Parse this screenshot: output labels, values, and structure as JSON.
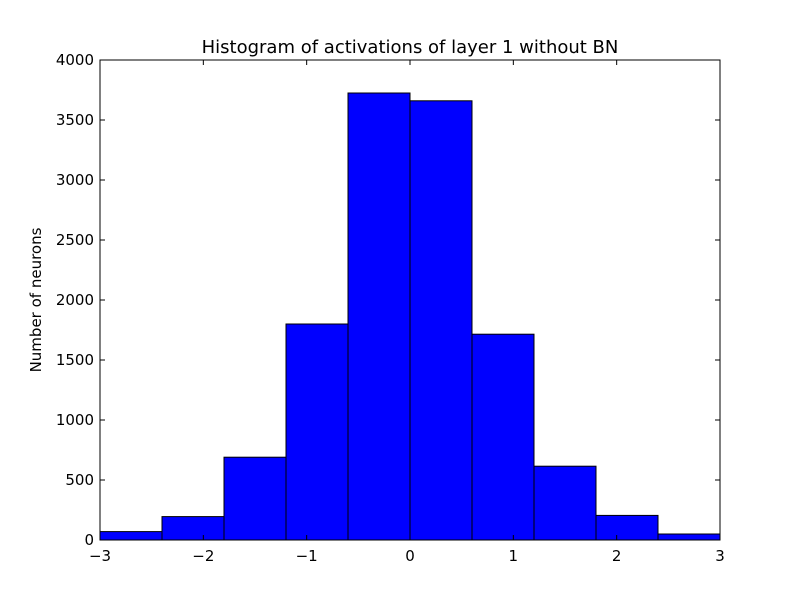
{
  "chart_data": {
    "type": "bar",
    "title": "Histogram of activations of layer 1  without BN",
    "xlabel": "",
    "ylabel": "Number of neurons",
    "bin_edges": [
      -3.0,
      -2.4,
      -1.8,
      -1.2,
      -0.6,
      0.0,
      0.6,
      1.2,
      1.8,
      2.4,
      3.0
    ],
    "values": [
      70,
      195,
      690,
      1800,
      3725,
      3660,
      1715,
      615,
      205,
      50
    ],
    "xlim": [
      -3,
      3
    ],
    "ylim": [
      0,
      4000
    ],
    "xticks": [
      -3,
      -2,
      -1,
      0,
      1,
      2,
      3
    ],
    "xtick_labels": [
      "−3",
      "−2",
      "−1",
      "0",
      "1",
      "2",
      "3"
    ],
    "yticks": [
      0,
      500,
      1000,
      1500,
      2000,
      2500,
      3000,
      3500,
      4000
    ],
    "ytick_labels": [
      "0",
      "500",
      "1000",
      "1500",
      "2000",
      "2500",
      "3000",
      "3500",
      "4000"
    ],
    "bar_color": "#0000ff",
    "edge_color": "#000000",
    "grid": false,
    "legend": "none"
  }
}
